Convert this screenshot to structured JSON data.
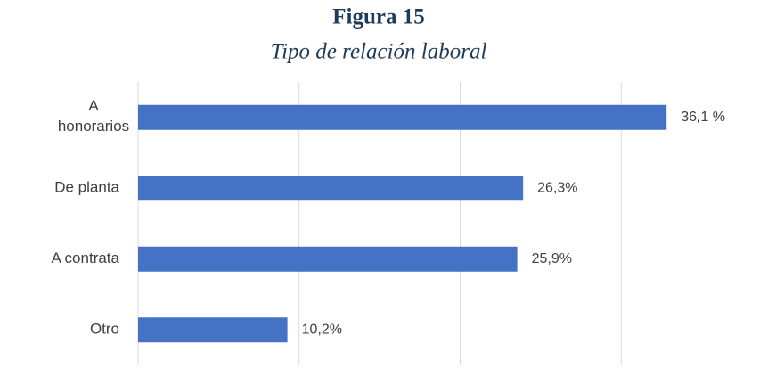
{
  "chart_data": {
    "type": "bar",
    "orientation": "horizontal",
    "title": "Figura 15",
    "subtitle": "Tipo de relación laboral",
    "categories": [
      "A honorarios",
      "De planta",
      "A contrata",
      "Otro"
    ],
    "values": [
      36.1,
      26.3,
      25.9,
      10.2
    ],
    "value_labels": [
      "36,1 %",
      "26,3%",
      "25,9%",
      "10,2%"
    ],
    "color": "#4472c4",
    "xlim": [
      0,
      44
    ],
    "xticks": [
      0,
      11,
      22,
      33
    ],
    "grid": true
  }
}
